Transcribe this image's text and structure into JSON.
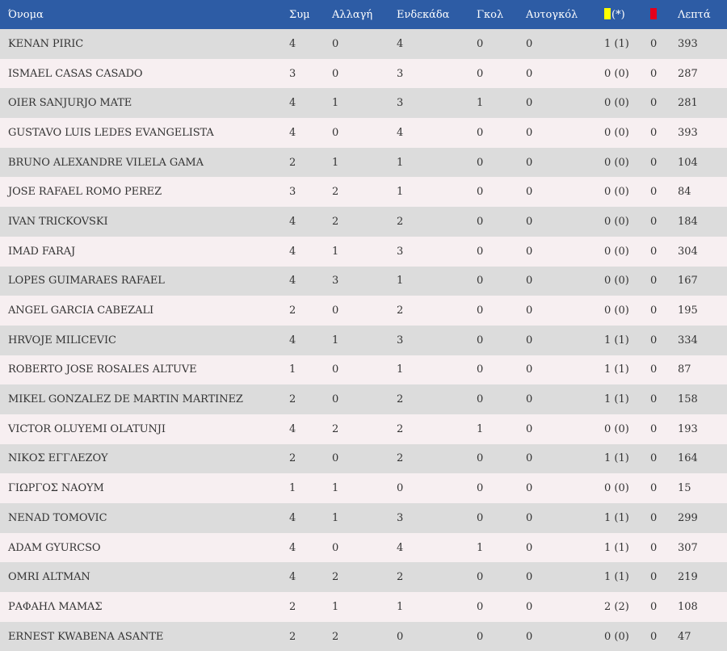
{
  "colors": {
    "header_bg": "#2d5ca5",
    "row_odd": "#dcdcdc",
    "row_even": "#f7eff1",
    "yellow_card": "#ffff00",
    "red_card": "#e4001b"
  },
  "headers": {
    "name": "Όνομα",
    "apps": "Συμ",
    "sub": "Αλλαγή",
    "starter": "Ενδεκάδα",
    "goals": "Γκολ",
    "own_goals": "Αυτογκόλ",
    "yellow_suffix": "(*)",
    "yellow_icon": "yellow-card-icon",
    "red_icon": "red-card-icon",
    "minutes": "Λεπτά"
  },
  "rows": [
    {
      "name": "KENAN PIRIC",
      "apps": "4",
      "sub": "0",
      "starter": "4",
      "goals": "0",
      "own_goals": "0",
      "yellow": "1 (1)",
      "red": "0",
      "minutes": "393"
    },
    {
      "name": "ISMAEL CASAS CASADO",
      "apps": "3",
      "sub": "0",
      "starter": "3",
      "goals": "0",
      "own_goals": "0",
      "yellow": "0 (0)",
      "red": "0",
      "minutes": "287"
    },
    {
      "name": "OIER SANJURJO MATE",
      "apps": "4",
      "sub": "1",
      "starter": "3",
      "goals": "1",
      "own_goals": "0",
      "yellow": "0 (0)",
      "red": "0",
      "minutes": "281"
    },
    {
      "name": "GUSTAVO LUIS LEDES EVANGELISTA",
      "apps": "4",
      "sub": "0",
      "starter": "4",
      "goals": "0",
      "own_goals": "0",
      "yellow": "0 (0)",
      "red": "0",
      "minutes": "393"
    },
    {
      "name": "BRUNO ALEXANDRE VILELA GAMA",
      "apps": "2",
      "sub": "1",
      "starter": "1",
      "goals": "0",
      "own_goals": "0",
      "yellow": "0 (0)",
      "red": "0",
      "minutes": "104"
    },
    {
      "name": "JOSE RAFAEL ROMO PEREZ",
      "apps": "3",
      "sub": "2",
      "starter": "1",
      "goals": "0",
      "own_goals": "0",
      "yellow": "0 (0)",
      "red": "0",
      "minutes": "84"
    },
    {
      "name": "IVAN TRICKOVSKI",
      "apps": "4",
      "sub": "2",
      "starter": "2",
      "goals": "0",
      "own_goals": "0",
      "yellow": "0 (0)",
      "red": "0",
      "minutes": "184"
    },
    {
      "name": "IMAD FARAJ",
      "apps": "4",
      "sub": "1",
      "starter": "3",
      "goals": "0",
      "own_goals": "0",
      "yellow": "0 (0)",
      "red": "0",
      "minutes": "304"
    },
    {
      "name": "LOPES GUIMARAES RAFAEL",
      "apps": "4",
      "sub": "3",
      "starter": "1",
      "goals": "0",
      "own_goals": "0",
      "yellow": "0 (0)",
      "red": "0",
      "minutes": "167"
    },
    {
      "name": "ANGEL GARCIA CABEZALI",
      "apps": "2",
      "sub": "0",
      "starter": "2",
      "goals": "0",
      "own_goals": "0",
      "yellow": "0 (0)",
      "red": "0",
      "minutes": "195"
    },
    {
      "name": "HRVOJE MILICEVIC",
      "apps": "4",
      "sub": "1",
      "starter": "3",
      "goals": "0",
      "own_goals": "0",
      "yellow": "1 (1)",
      "red": "0",
      "minutes": "334"
    },
    {
      "name": "ROBERTO JOSE ROSALES ALTUVE",
      "apps": "1",
      "sub": "0",
      "starter": "1",
      "goals": "0",
      "own_goals": "0",
      "yellow": "1 (1)",
      "red": "0",
      "minutes": "87"
    },
    {
      "name": "MIKEL GONZALEZ DE MARTIN MARTINEZ",
      "apps": "2",
      "sub": "0",
      "starter": "2",
      "goals": "0",
      "own_goals": "0",
      "yellow": "1 (1)",
      "red": "0",
      "minutes": "158"
    },
    {
      "name": "VICTOR OLUYEMI OLATUNJI",
      "apps": "4",
      "sub": "2",
      "starter": "2",
      "goals": "1",
      "own_goals": "0",
      "yellow": "0 (0)",
      "red": "0",
      "minutes": "193"
    },
    {
      "name": "ΝΙΚΟΣ ΕΓΓΛΕΖΟΥ",
      "apps": "2",
      "sub": "0",
      "starter": "2",
      "goals": "0",
      "own_goals": "0",
      "yellow": "1 (1)",
      "red": "0",
      "minutes": "164"
    },
    {
      "name": "ΓΙΩΡΓΟΣ ΝΑΟΥΜ",
      "apps": "1",
      "sub": "1",
      "starter": "0",
      "goals": "0",
      "own_goals": "0",
      "yellow": "0 (0)",
      "red": "0",
      "minutes": "15"
    },
    {
      "name": "NENAD TOMOVIC",
      "apps": "4",
      "sub": "1",
      "starter": "3",
      "goals": "0",
      "own_goals": "0",
      "yellow": "1 (1)",
      "red": "0",
      "minutes": "299"
    },
    {
      "name": "ADAM GYURCSO",
      "apps": "4",
      "sub": "0",
      "starter": "4",
      "goals": "1",
      "own_goals": "0",
      "yellow": "1 (1)",
      "red": "0",
      "minutes": "307"
    },
    {
      "name": "OMRI ALTMAN",
      "apps": "4",
      "sub": "2",
      "starter": "2",
      "goals": "0",
      "own_goals": "0",
      "yellow": "1 (1)",
      "red": "0",
      "minutes": "219"
    },
    {
      "name": "ΡΑΦΑΗΛ ΜΑΜΑΣ",
      "apps": "2",
      "sub": "1",
      "starter": "1",
      "goals": "0",
      "own_goals": "0",
      "yellow": "2 (2)",
      "red": "0",
      "minutes": "108"
    },
    {
      "name": "ERNEST KWABENA ASANTE",
      "apps": "2",
      "sub": "2",
      "starter": "0",
      "goals": "0",
      "own_goals": "0",
      "yellow": "0 (0)",
      "red": "0",
      "minutes": "47"
    }
  ]
}
